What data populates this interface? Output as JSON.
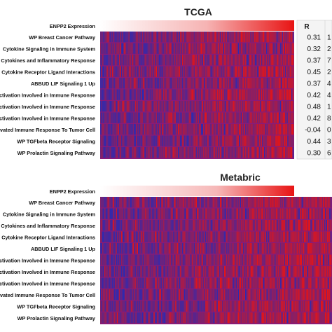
{
  "chart_data": [
    {
      "type": "heatmap",
      "title": "TCGA",
      "color_low": "#2a2ab4",
      "color_high": "#e81414",
      "header_row": "ENPP2 Expression",
      "rows": [
        "WP Breast Cancer Pathway",
        "Cytokine Signaling in Immune System",
        "Cytokines and Inflammatory Response",
        "Cytokine Receptor Ligand Interactions",
        "ABBUD LIF Signaling 1 Up",
        "Activation Involved in Immune Response",
        "Activation Involved in Immune Response",
        "Activation Involved in Immune Response",
        "Activated Immune Response To Tumor Cell",
        "WP TGFbeta Receptor Signaling",
        "WP Prolactin Signaling Pathway"
      ],
      "r_header": "R",
      "r_values": [
        "0.31",
        "0.32",
        "0.37",
        "0.45",
        "0.37",
        "0.42",
        "0.48",
        "0.42",
        "-0.04",
        "0.44",
        "0.30"
      ],
      "p_fragments": [
        "1",
        "2",
        "7",
        "2",
        "4",
        "4",
        "1",
        "8",
        "0",
        "3",
        "6"
      ]
    },
    {
      "type": "heatmap",
      "title": "Metabric",
      "color_low": "#2a2ab4",
      "color_high": "#e81414",
      "header_row": "ENPP2 Expression",
      "rows": [
        "WP Breast Cancer Pathway",
        "Cytokine Signaling in Immune System",
        "Cytokines and Inflammatory Response",
        "Cytokine Receptor Ligand Interactions",
        "ABBUD LIF Signaling 1 Up",
        "Activation Involved in Immune Response",
        "Activation Involved in Immune Response",
        "Activation Involved in Immune Response",
        "Activated Immune Response To Tumor Cell",
        "WP TGFbeta Receptor Signaling",
        "WP Prolactin Signaling Pathway"
      ]
    }
  ]
}
